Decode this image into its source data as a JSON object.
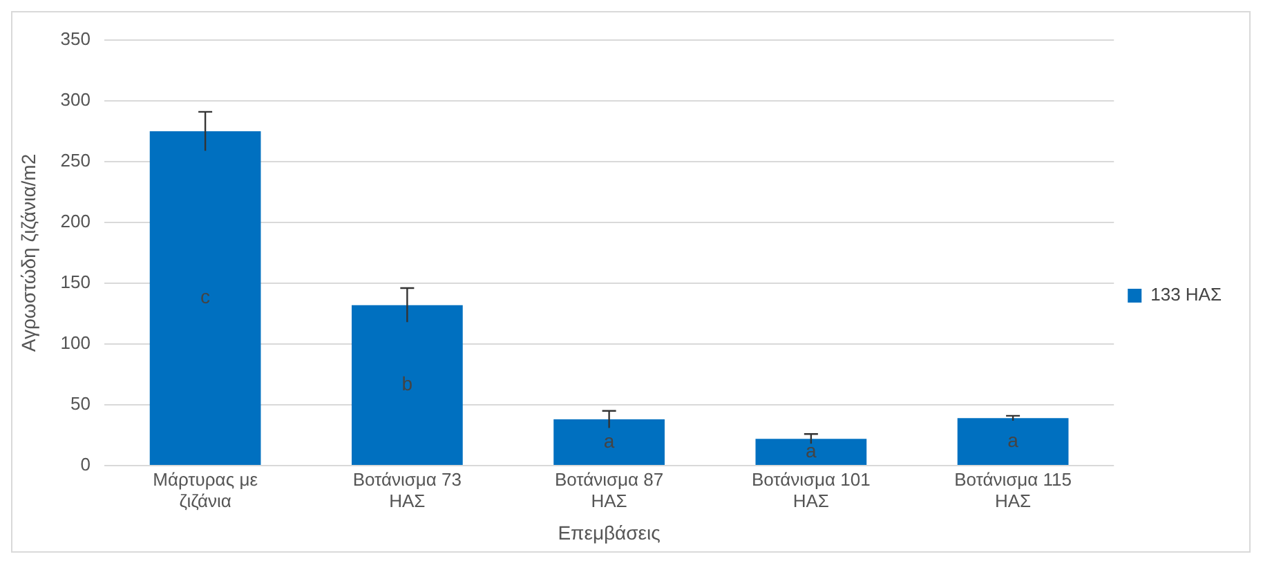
{
  "chart_data": {
    "type": "bar",
    "xlabel": "Επεμβάσεις",
    "ylabel": "Αγρωστώδη ζιζάνια/m2",
    "categories": [
      "Μάρτυρας με ζιζάνια",
      "Βοτάνισμα 73 ΗΑΣ",
      "Βοτάνισμα 87 ΗΑΣ",
      "Βοτάνισμα 101 ΗΑΣ",
      "Βοτάνισμα 115 ΗΑΣ"
    ],
    "series": [
      {
        "name": "133 ΗΑΣ",
        "color": "#0070c0",
        "values": [
          275,
          132,
          38,
          22,
          39
        ],
        "errors": [
          16,
          14,
          7,
          4,
          2
        ]
      }
    ],
    "annotations": [
      "c",
      "b",
      "a",
      "a",
      "a"
    ],
    "ylim": [
      0,
      350
    ],
    "yticks": [
      0,
      50,
      100,
      150,
      200,
      250,
      300,
      350
    ],
    "grid": "y",
    "legend": "right"
  }
}
